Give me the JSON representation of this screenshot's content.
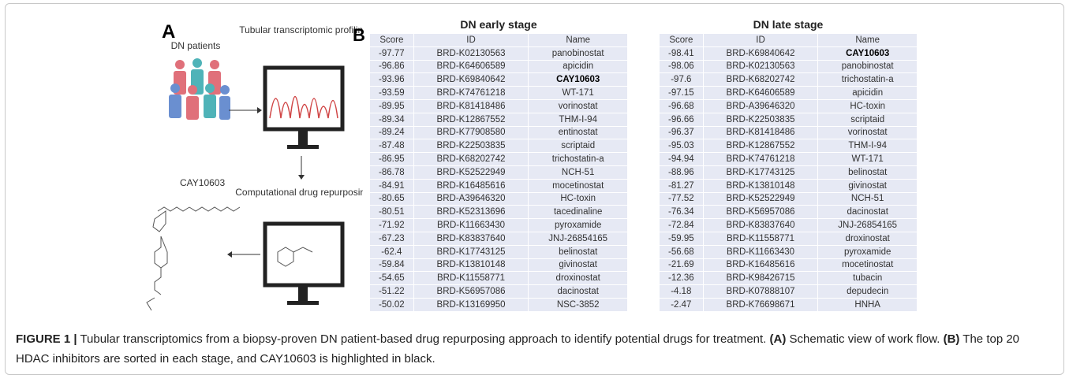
{
  "panel_a": {
    "label": "A",
    "patients_label": "DN patients",
    "profiling_label": "Tubular transcriptomic profiling",
    "compound_label": "CAY10603",
    "repurposing_label": "Computational drug repurposing"
  },
  "panel_b": {
    "label": "B",
    "tables": [
      {
        "title": "DN early stage",
        "header": [
          "Score",
          "ID",
          "Name"
        ],
        "bold_row": 2,
        "rows": [
          [
            -97.77,
            "BRD-K02130563",
            "panobinostat"
          ],
          [
            -96.86,
            "BRD-K64606589",
            "apicidin"
          ],
          [
            -93.96,
            "BRD-K69840642",
            "CAY10603"
          ],
          [
            -93.59,
            "BRD-K74761218",
            "WT-171"
          ],
          [
            -89.95,
            "BRD-K81418486",
            "vorinostat"
          ],
          [
            -89.34,
            "BRD-K12867552",
            "THM-I-94"
          ],
          [
            -89.24,
            "BRD-K77908580",
            "entinostat"
          ],
          [
            -87.48,
            "BRD-K22503835",
            "scriptaid"
          ],
          [
            -86.95,
            "BRD-K68202742",
            "trichostatin-a"
          ],
          [
            -86.78,
            "BRD-K52522949",
            "NCH-51"
          ],
          [
            -84.91,
            "BRD-K16485616",
            "mocetinostat"
          ],
          [
            -80.65,
            "BRD-A39646320",
            "HC-toxin"
          ],
          [
            -80.51,
            "BRD-K52313696",
            "tacedinaline"
          ],
          [
            -71.92,
            "BRD-K11663430",
            "pyroxamide"
          ],
          [
            -67.23,
            "BRD-K83837640",
            "JNJ-26854165"
          ],
          [
            -62.4,
            "BRD-K17743125",
            "belinostat"
          ],
          [
            -59.84,
            "BRD-K13810148",
            "givinostat"
          ],
          [
            -54.65,
            "BRD-K11558771",
            "droxinostat"
          ],
          [
            -51.22,
            "BRD-K56957086",
            "dacinostat"
          ],
          [
            -50.02,
            "BRD-K13169950",
            "NSC-3852"
          ]
        ]
      },
      {
        "title": "DN late stage",
        "header": [
          "Score",
          "ID",
          "Name"
        ],
        "bold_row": 0,
        "rows": [
          [
            -98.41,
            "BRD-K69840642",
            "CAY10603"
          ],
          [
            -98.06,
            "BRD-K02130563",
            "panobinostat"
          ],
          [
            -97.6,
            "BRD-K68202742",
            "trichostatin-a"
          ],
          [
            -97.15,
            "BRD-K64606589",
            "apicidin"
          ],
          [
            -96.68,
            "BRD-A39646320",
            "HC-toxin"
          ],
          [
            -96.66,
            "BRD-K22503835",
            "scriptaid"
          ],
          [
            -96.37,
            "BRD-K81418486",
            "vorinostat"
          ],
          [
            -95.03,
            "BRD-K12867552",
            "THM-I-94"
          ],
          [
            -94.94,
            "BRD-K74761218",
            "WT-171"
          ],
          [
            -88.96,
            "BRD-K17743125",
            "belinostat"
          ],
          [
            -81.27,
            "BRD-K13810148",
            "givinostat"
          ],
          [
            -77.52,
            "BRD-K52522949",
            "NCH-51"
          ],
          [
            -76.34,
            "BRD-K56957086",
            "dacinostat"
          ],
          [
            -72.84,
            "BRD-K83837640",
            "JNJ-26854165"
          ],
          [
            -59.95,
            "BRD-K11558771",
            "droxinostat"
          ],
          [
            -56.68,
            "BRD-K11663430",
            "pyroxamide"
          ],
          [
            -21.69,
            "BRD-K16485616",
            "mocetinostat"
          ],
          [
            -12.36,
            "BRD-K98426715",
            "tubacin"
          ],
          [
            -4.18,
            "BRD-K07888107",
            "depudecin"
          ],
          [
            -2.47,
            "BRD-K76698671",
            "HNHA"
          ]
        ]
      }
    ]
  },
  "caption": {
    "figure": "FIGURE 1 |",
    "text1": " Tubular transcriptomics from a biopsy-proven DN patient-based drug repurposing approach to identify potential drugs for treatment. ",
    "a": "(A)",
    "text2": " Schematic view of work flow. ",
    "b": "(B)",
    "text3": " The top 20 HDAC inhibitors are sorted in each stage, and CAY10603 is highlighted in black."
  }
}
